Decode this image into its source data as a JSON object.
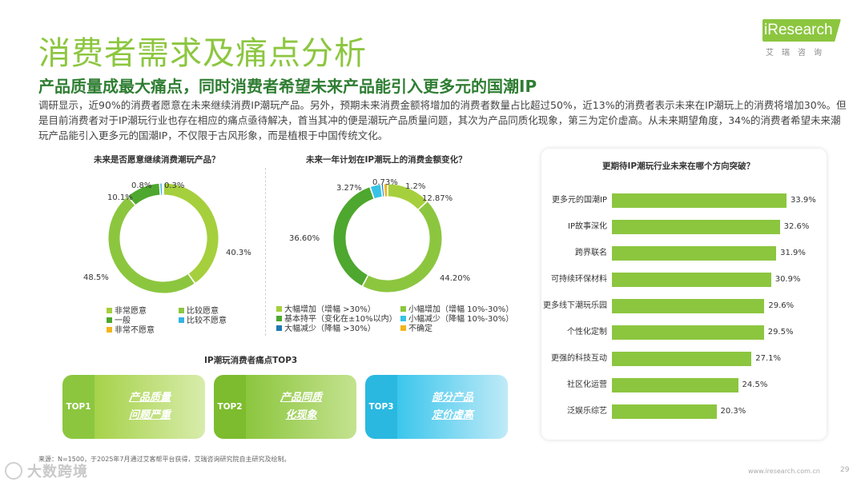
{
  "header": {
    "title": "消费者需求及痛点分析",
    "subtitle": "产品质量成最大痛点，同时消费者希望未来产品能引入更多元的国潮IP",
    "summary": "调研显示，近90%的消费者愿意在未来继续消费IP潮玩产品。另外，预期未来消费金额将增加的消费者数量占比超过50%，近13%的消费者表示未来在IP潮玩上的消费将增加30%。但是目前消费者对于IP潮玩行业也存在相应的痛点亟待解决，首当其冲的便是潮玩产品质量问题，其次为产品同质化现象，第三为定价虚高。从未来期望角度，34%的消费者希望未来潮玩产品能引入更多元的国潮IP，不仅限于古风形象，而是植根于中国传统文化。"
  },
  "logo": {
    "brand": "iResearch",
    "sub": "艾瑞咨询"
  },
  "chart_data": [
    {
      "type": "pie",
      "title": "未来是否愿意继续消费潮玩产品？",
      "categories": [
        "非常愿意",
        "比较愿意",
        "一般",
        "比较不愿意",
        "非常不愿意"
      ],
      "values": [
        40.3,
        48.5,
        10.1,
        0.8,
        0.3
      ],
      "value_labels": [
        "40.3%",
        "48.5%",
        "10.1%",
        "0.8%",
        "0.3%"
      ],
      "colors": [
        "#a6cf3d",
        "#8cc63f",
        "#4ea72e",
        "#36b3e6",
        "#f2b51c"
      ]
    },
    {
      "type": "pie",
      "title": "未来一年计划在IP潮玩上的消费金额变化？",
      "categories": [
        "大幅增加（增幅 >30%）",
        "小幅增加（增幅 10%-30%）",
        "基本持平（变化在±10%以内）",
        "小幅减少（降幅 10%-30%）",
        "大幅减少（降幅 >30%）",
        "不确定"
      ],
      "values": [
        12.87,
        44.2,
        36.6,
        3.27,
        0.73,
        1.2
      ],
      "value_labels": [
        "12.87%",
        "44.20%",
        "36.60%",
        "3.27%",
        "0.73%",
        "1.2%"
      ],
      "colors": [
        "#a6cf3d",
        "#8cc63f",
        "#4ea72e",
        "#36c3e6",
        "#1f78b4",
        "#f2b51c"
      ]
    },
    {
      "type": "bar",
      "orientation": "horizontal",
      "title": "更期待IP潮玩行业未来在哪个方向突破？",
      "categories": [
        "更多元的国潮IP",
        "IP故事深化",
        "跨界联名",
        "可持续环保材料",
        "更多线下潮玩乐园",
        "个性化定制",
        "更强的科技互动",
        "社区化运营",
        "泛娱乐综艺"
      ],
      "values": [
        33.9,
        32.6,
        31.9,
        30.9,
        29.6,
        29.5,
        27.1,
        24.5,
        20.3
      ],
      "value_labels": [
        "33.9%",
        "32.6%",
        "31.9%",
        "30.9%",
        "29.6%",
        "29.5%",
        "27.1%",
        "24.5%",
        "20.3%"
      ],
      "colors": [
        "#8cc63f"
      ],
      "xlim": [
        0,
        36
      ]
    }
  ],
  "pain_points": {
    "title": "IP潮玩消费者痛点TOP3",
    "items": [
      {
        "tag": "TOP1",
        "text": "产品质量问题严重",
        "color_tag": "#8cc63f",
        "color_from": "#a6d24a",
        "color_to": "#d8ecab"
      },
      {
        "tag": "TOP2",
        "text": "产品同质化现象",
        "color_tag": "#7cbc2e",
        "color_from": "#8cc63f",
        "color_to": "#c4e28f"
      },
      {
        "tag": "TOP3",
        "text": "部分产品定价虚高",
        "color_tag": "#2ab8e0",
        "color_from": "#3cc6ec",
        "color_to": "#bfeaf7"
      }
    ]
  },
  "footer": {
    "source": "来源：N=1500，于2025年7月通过艾客帮平台获得，艾瑞咨询研究院自主研究及绘制。",
    "url": "www.iresearch.com.cn",
    "page": "29",
    "watermark": "大数跨境"
  }
}
